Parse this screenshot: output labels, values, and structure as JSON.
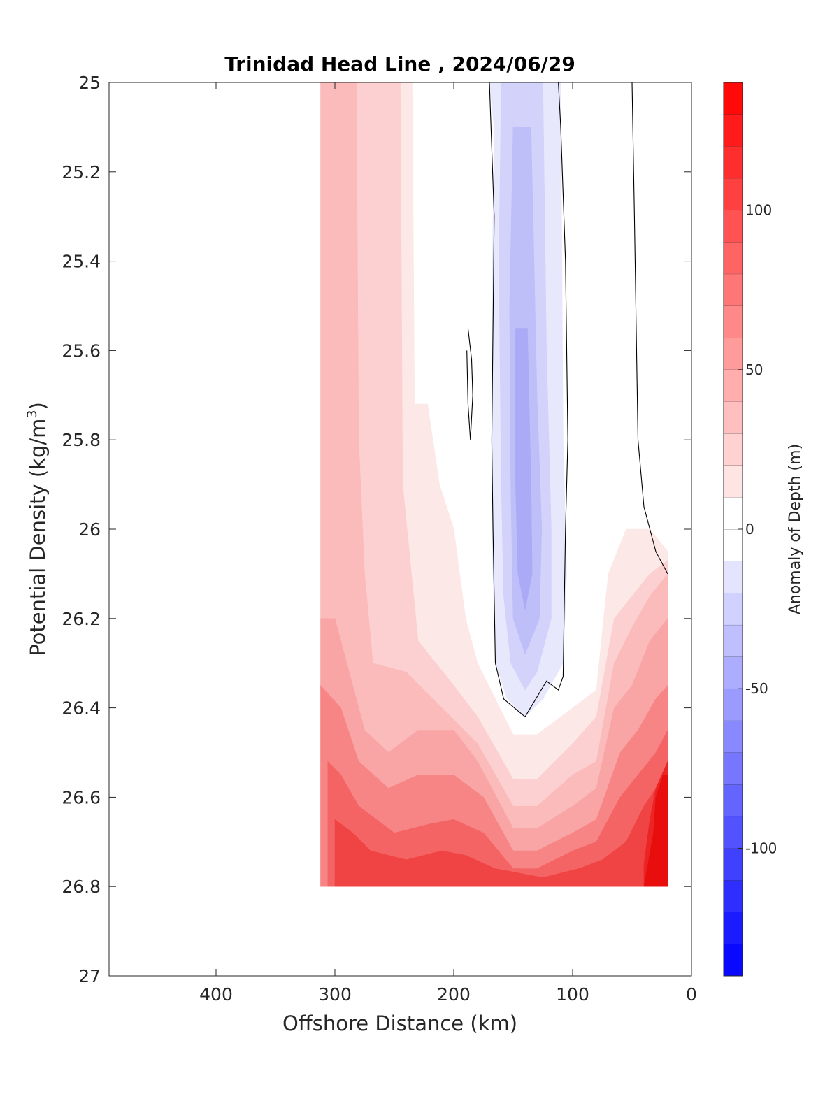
{
  "chart_data": {
    "type": "contour",
    "title": "Trinidad Head Line , 2024/06/29",
    "xlabel": "Offshore Distance (km)",
    "ylabel_main": "Potential Density (kg/m",
    "ylabel_sup": "3",
    "ylabel_end": ")",
    "xlim": [
      490,
      0
    ],
    "ylim": [
      25,
      27
    ],
    "x_reversed": true,
    "y_reversed": true,
    "xticks": [
      400,
      300,
      200,
      100,
      0
    ],
    "xtick_labels": [
      "400",
      "300",
      "200",
      "100",
      "0"
    ],
    "yticks": [
      25,
      25.2,
      25.4,
      25.6,
      25.8,
      26,
      26.2,
      26.4,
      26.6,
      26.8,
      27
    ],
    "ytick_labels": [
      "25",
      "25.2",
      "25.4",
      "25.6",
      "25.8",
      "26",
      "26.2",
      "26.4",
      "26.6",
      "26.8",
      "27"
    ],
    "colorbar": {
      "label": "Anomaly of Depth (m)",
      "range": [
        -140,
        140
      ],
      "step": 10,
      "ticks": [
        100,
        50,
        0,
        -50,
        -100
      ],
      "tick_labels": [
        "100",
        "50",
        "0",
        "-50",
        "-100"
      ],
      "colormap": "blue-white-red",
      "low_color": "#0000ff",
      "high_color": "#ff0000"
    },
    "regions": [
      {
        "level": 10,
        "color": "#fde8e8",
        "points": [
          [
            312,
            25
          ],
          [
            235,
            25
          ],
          [
            233,
            25.72
          ],
          [
            222,
            25.72
          ],
          [
            212,
            25.9
          ],
          [
            200,
            26.0
          ],
          [
            190,
            26.2
          ],
          [
            180,
            26.3
          ],
          [
            150,
            26.46
          ],
          [
            130,
            26.46
          ],
          [
            100,
            26.4
          ],
          [
            80,
            26.36
          ],
          [
            70,
            26.1
          ],
          [
            55,
            26.0
          ],
          [
            35,
            26.0
          ],
          [
            20,
            26.05
          ],
          [
            20,
            26.8
          ],
          [
            312,
            26.8
          ]
        ]
      },
      {
        "level": 20,
        "color": "#fcd0d0",
        "points": [
          [
            312,
            25
          ],
          [
            245,
            25
          ],
          [
            243,
            25.9
          ],
          [
            230,
            26.25
          ],
          [
            200,
            26.35
          ],
          [
            180,
            26.42
          ],
          [
            150,
            26.56
          ],
          [
            130,
            26.56
          ],
          [
            100,
            26.48
          ],
          [
            80,
            26.42
          ],
          [
            65,
            26.2
          ],
          [
            50,
            26.15
          ],
          [
            35,
            26.1
          ],
          [
            20,
            26.07
          ],
          [
            20,
            26.8
          ],
          [
            312,
            26.8
          ]
        ]
      },
      {
        "level": 30,
        "color": "#fbbbbb",
        "points": [
          [
            312,
            25
          ],
          [
            282,
            25
          ],
          [
            280,
            25.8
          ],
          [
            275,
            26.1
          ],
          [
            268,
            26.3
          ],
          [
            240,
            26.32
          ],
          [
            210,
            26.4
          ],
          [
            180,
            26.48
          ],
          [
            150,
            26.62
          ],
          [
            130,
            26.62
          ],
          [
            100,
            26.55
          ],
          [
            80,
            26.52
          ],
          [
            65,
            26.3
          ],
          [
            50,
            26.22
          ],
          [
            35,
            26.15
          ],
          [
            20,
            26.1
          ],
          [
            20,
            26.8
          ],
          [
            312,
            26.8
          ]
        ]
      },
      {
        "level": 40,
        "color": "#f9a5a5",
        "points": [
          [
            312,
            26.2
          ],
          [
            300,
            26.2
          ],
          [
            290,
            26.3
          ],
          [
            275,
            26.45
          ],
          [
            255,
            26.5
          ],
          [
            230,
            26.45
          ],
          [
            200,
            26.45
          ],
          [
            180,
            26.52
          ],
          [
            150,
            26.67
          ],
          [
            130,
            26.67
          ],
          [
            100,
            26.62
          ],
          [
            80,
            26.58
          ],
          [
            65,
            26.4
          ],
          [
            50,
            26.35
          ],
          [
            35,
            26.25
          ],
          [
            20,
            26.2
          ],
          [
            20,
            26.8
          ],
          [
            312,
            26.8
          ]
        ]
      },
      {
        "level": 60,
        "color": "#f78585",
        "points": [
          [
            312,
            26.35
          ],
          [
            295,
            26.4
          ],
          [
            280,
            26.52
          ],
          [
            255,
            26.58
          ],
          [
            230,
            26.55
          ],
          [
            200,
            26.55
          ],
          [
            175,
            26.6
          ],
          [
            150,
            26.72
          ],
          [
            130,
            26.72
          ],
          [
            100,
            26.68
          ],
          [
            80,
            26.65
          ],
          [
            60,
            26.5
          ],
          [
            45,
            26.45
          ],
          [
            30,
            26.38
          ],
          [
            20,
            26.35
          ],
          [
            20,
            26.8
          ],
          [
            312,
            26.8
          ]
        ]
      },
      {
        "level": 80,
        "color": "#f46464",
        "points": [
          [
            306,
            26.52
          ],
          [
            295,
            26.55
          ],
          [
            280,
            26.62
          ],
          [
            250,
            26.68
          ],
          [
            220,
            26.66
          ],
          [
            200,
            26.65
          ],
          [
            175,
            26.68
          ],
          [
            150,
            26.76
          ],
          [
            130,
            26.76
          ],
          [
            100,
            26.72
          ],
          [
            80,
            26.7
          ],
          [
            60,
            26.6
          ],
          [
            45,
            26.55
          ],
          [
            30,
            26.5
          ],
          [
            20,
            26.45
          ],
          [
            20,
            26.8
          ],
          [
            306,
            26.8
          ]
        ]
      },
      {
        "level": 100,
        "color": "#f04444",
        "points": [
          [
            300,
            26.65
          ],
          [
            285,
            26.68
          ],
          [
            270,
            26.72
          ],
          [
            240,
            26.74
          ],
          [
            210,
            26.72
          ],
          [
            190,
            26.73
          ],
          [
            165,
            26.76
          ],
          [
            125,
            26.78
          ],
          [
            95,
            26.76
          ],
          [
            75,
            26.74
          ],
          [
            55,
            26.7
          ],
          [
            40,
            26.62
          ],
          [
            30,
            26.58
          ],
          [
            20,
            26.55
          ],
          [
            20,
            26.8
          ],
          [
            300,
            26.8
          ]
        ]
      },
      {
        "level": 120,
        "color": "#ec2424",
        "points": [
          [
            40,
            26.75
          ],
          [
            35,
            26.65
          ],
          [
            30,
            26.58
          ],
          [
            20,
            26.52
          ],
          [
            20,
            26.8
          ],
          [
            40,
            26.8
          ]
        ]
      },
      {
        "level": 130,
        "color": "#e80e0e",
        "points": [
          [
            40,
            26.8
          ],
          [
            32,
            26.68
          ],
          [
            30,
            26.6
          ],
          [
            24,
            26.55
          ],
          [
            20,
            26.55
          ],
          [
            20,
            26.8
          ]
        ]
      },
      {
        "level": -10,
        "color": "#e8e8fc",
        "points": [
          [
            170,
            25
          ],
          [
            110,
            25
          ],
          [
            108,
            25.8
          ],
          [
            105,
            26.1
          ],
          [
            108,
            26.3
          ],
          [
            125,
            26.38
          ],
          [
            140,
            26.42
          ],
          [
            155,
            26.38
          ],
          [
            165,
            26.3
          ],
          [
            168,
            26.0
          ],
          [
            168,
            25.5
          ],
          [
            166,
            25.1
          ]
        ]
      },
      {
        "level": -20,
        "color": "#d2d2fa",
        "points": [
          [
            160,
            25
          ],
          [
            125,
            25
          ],
          [
            122,
            25.6
          ],
          [
            118,
            26.0
          ],
          [
            118,
            26.2
          ],
          [
            130,
            26.32
          ],
          [
            140,
            26.36
          ],
          [
            152,
            26.3
          ],
          [
            158,
            26.15
          ],
          [
            160,
            25.9
          ],
          [
            162,
            25.4
          ]
        ]
      },
      {
        "level": -30,
        "color": "#bebef8",
        "points": [
          [
            150,
            25.1
          ],
          [
            135,
            25.1
          ],
          [
            130,
            25.7
          ],
          [
            126,
            26.0
          ],
          [
            128,
            26.2
          ],
          [
            140,
            26.28
          ],
          [
            150,
            26.2
          ],
          [
            152,
            25.9
          ],
          [
            153,
            25.5
          ]
        ]
      },
      {
        "level": -40,
        "color": "#aaaaf6",
        "points": [
          [
            148,
            25.55
          ],
          [
            138,
            25.55
          ],
          [
            135,
            25.9
          ],
          [
            134,
            26.1
          ],
          [
            140,
            26.18
          ],
          [
            146,
            26.1
          ],
          [
            148,
            25.9
          ]
        ]
      }
    ],
    "zero_contours": [
      {
        "level": 0,
        "points": [
          [
            170,
            25
          ],
          [
            166,
            25.3
          ],
          [
            168,
            25.8
          ],
          [
            167,
            26.0
          ],
          [
            165,
            26.3
          ],
          [
            158,
            26.38
          ],
          [
            140,
            26.42
          ],
          [
            122,
            26.34
          ],
          [
            112,
            26.36
          ],
          [
            108,
            26.33
          ],
          [
            106,
            26.0
          ],
          [
            104,
            25.8
          ],
          [
            106,
            25.4
          ],
          [
            110,
            25.1
          ],
          [
            112,
            25
          ]
        ]
      },
      {
        "level": 0,
        "points": [
          [
            188,
            25.55
          ],
          [
            185,
            25.62
          ],
          [
            184,
            25.7
          ],
          [
            186,
            25.8
          ],
          [
            188,
            25.72
          ],
          [
            189,
            25.6
          ]
        ]
      },
      {
        "level": 0,
        "points": [
          [
            50,
            25
          ],
          [
            48,
            25.3
          ],
          [
            45,
            25.8
          ],
          [
            40,
            25.95
          ],
          [
            30,
            26.05
          ],
          [
            20,
            26.1
          ]
        ]
      }
    ]
  }
}
